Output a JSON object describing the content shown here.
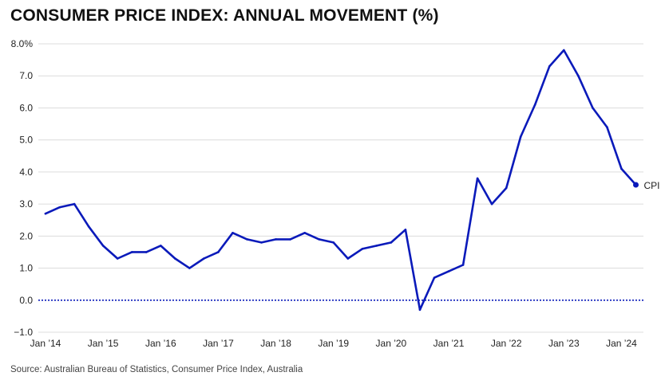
{
  "page": {
    "title": "CONSUMER PRICE INDEX: ANNUAL MOVEMENT (%)",
    "source": "Source: Australian Bureau of Statistics, Consumer Price Index, Australia"
  },
  "colors": {
    "line": "#0a1aba",
    "zero_line": "#0a1aba",
    "grid": "#dcdcdc",
    "text": "#222222"
  },
  "chart_data": {
    "type": "line",
    "title": "CONSUMER PRICE INDEX: ANNUAL MOVEMENT (%)",
    "xlabel": "",
    "ylabel": "",
    "x_unit": "quarter",
    "ylim": [
      -1.0,
      8.0
    ],
    "y_ticks": [
      {
        "value": 8.0,
        "label": "8.0%"
      },
      {
        "value": 7.0,
        "label": "7.0"
      },
      {
        "value": 6.0,
        "label": "6.0"
      },
      {
        "value": 5.0,
        "label": "5.0"
      },
      {
        "value": 4.0,
        "label": "4.0"
      },
      {
        "value": 3.0,
        "label": "3.0"
      },
      {
        "value": 2.0,
        "label": "2.0"
      },
      {
        "value": 1.0,
        "label": "1.0"
      },
      {
        "value": 0.0,
        "label": "0.0"
      },
      {
        "value": -1.0,
        "label": "−1.0"
      }
    ],
    "x_ticks": [
      {
        "date": "2014-03",
        "label": "Jan ’14"
      },
      {
        "date": "2015-03",
        "label": "Jan ’15"
      },
      {
        "date": "2016-03",
        "label": "Jan ’16"
      },
      {
        "date": "2017-03",
        "label": "Jan ’17"
      },
      {
        "date": "2018-03",
        "label": "Jan ’18"
      },
      {
        "date": "2019-03",
        "label": "Jan ’19"
      },
      {
        "date": "2020-03",
        "label": "Jan ’20"
      },
      {
        "date": "2021-03",
        "label": "Jan ’21"
      },
      {
        "date": "2022-03",
        "label": "Jan ’22"
      },
      {
        "date": "2023-03",
        "label": "Jan ’23"
      },
      {
        "date": "2024-03",
        "label": "Jan ’24"
      }
    ],
    "grid": true,
    "zero_line": true,
    "series": [
      {
        "name": "CPI",
        "points": [
          {
            "x": "2014-03",
            "y": 2.7
          },
          {
            "x": "2014-06",
            "y": 2.9
          },
          {
            "x": "2014-09",
            "y": 3.0
          },
          {
            "x": "2014-12",
            "y": 2.3
          },
          {
            "x": "2015-03",
            "y": 1.7
          },
          {
            "x": "2015-06",
            "y": 1.3
          },
          {
            "x": "2015-09",
            "y": 1.5
          },
          {
            "x": "2015-12",
            "y": 1.5
          },
          {
            "x": "2016-03",
            "y": 1.7
          },
          {
            "x": "2016-06",
            "y": 1.3
          },
          {
            "x": "2016-09",
            "y": 1.0
          },
          {
            "x": "2016-12",
            "y": 1.3
          },
          {
            "x": "2017-03",
            "y": 1.5
          },
          {
            "x": "2017-06",
            "y": 2.1
          },
          {
            "x": "2017-09",
            "y": 1.9
          },
          {
            "x": "2017-12",
            "y": 1.8
          },
          {
            "x": "2018-03",
            "y": 1.9
          },
          {
            "x": "2018-06",
            "y": 1.9
          },
          {
            "x": "2018-09",
            "y": 2.1
          },
          {
            "x": "2018-12",
            "y": 1.9
          },
          {
            "x": "2019-03",
            "y": 1.8
          },
          {
            "x": "2019-06",
            "y": 1.3
          },
          {
            "x": "2019-09",
            "y": 1.6
          },
          {
            "x": "2019-12",
            "y": 1.7
          },
          {
            "x": "2020-03",
            "y": 1.8
          },
          {
            "x": "2020-06",
            "y": 2.2
          },
          {
            "x": "2020-09",
            "y": -0.3
          },
          {
            "x": "2020-12",
            "y": 0.7
          },
          {
            "x": "2021-03",
            "y": 0.9
          },
          {
            "x": "2021-06",
            "y": 1.1
          },
          {
            "x": "2021-09",
            "y": 3.8
          },
          {
            "x": "2021-12",
            "y": 3.0
          },
          {
            "x": "2022-03",
            "y": 3.5
          },
          {
            "x": "2022-06",
            "y": 5.1
          },
          {
            "x": "2022-09",
            "y": 6.1
          },
          {
            "x": "2022-12",
            "y": 7.3
          },
          {
            "x": "2023-03",
            "y": 7.8
          },
          {
            "x": "2023-06",
            "y": 7.0
          },
          {
            "x": "2023-09",
            "y": 6.0
          },
          {
            "x": "2023-12",
            "y": 5.4
          },
          {
            "x": "2024-03",
            "y": 4.1
          },
          {
            "x": "2024-06",
            "y": 3.6
          }
        ],
        "end_label": "CPI"
      }
    ]
  }
}
